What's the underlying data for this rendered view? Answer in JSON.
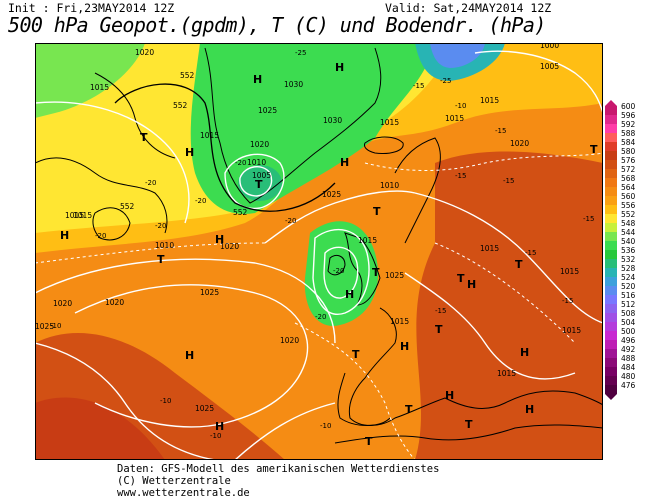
{
  "header": {
    "init": "Init : Fri,23MAY2014 12Z",
    "valid": "Valid: Sat,24MAY2014 12Z",
    "title": "500 hPa Geopot.(gpdm), T (C) und Bodendr. (hPa)"
  },
  "footer": {
    "line1": "Daten: GFS-Modell des amerikanischen Wetterdienstes",
    "line2": "(C) Wetterzentrale",
    "line3": "www.wetterzentrale.de"
  },
  "legend": {
    "values": [
      "600",
      "596",
      "592",
      "588",
      "584",
      "580",
      "576",
      "572",
      "568",
      "564",
      "560",
      "556",
      "552",
      "548",
      "544",
      "540",
      "536",
      "532",
      "528",
      "524",
      "520",
      "516",
      "512",
      "508",
      "504",
      "500",
      "496",
      "492",
      "488",
      "484",
      "480",
      "476"
    ],
    "colors": [
      "#c8186e",
      "#e0288c",
      "#ff3ca8",
      "#ff5c5c",
      "#e03c28",
      "#c83c14",
      "#d25014",
      "#e06414",
      "#f07814",
      "#f58c14",
      "#faa014",
      "#ffbe14",
      "#ffe632",
      "#c8f03c",
      "#78e650",
      "#3cdc50",
      "#28c83c",
      "#28be78",
      "#28b4b4",
      "#3ca0dc",
      "#5a8cf0",
      "#7878ff",
      "#8c64f0",
      "#a050e6",
      "#b43cdc",
      "#c828d2",
      "#be1eb4",
      "#a01496",
      "#8c0a78",
      "#780064",
      "#640050",
      "#500040"
    ]
  },
  "map": {
    "high_label": "H",
    "low_label": "T",
    "isobars": [
      "1000",
      "1005",
      "1010",
      "1015",
      "1020",
      "1025",
      "1030"
    ],
    "geopotential": [
      "552"
    ],
    "temperatures": [
      "-10",
      "-15",
      "-20",
      "-25"
    ]
  }
}
